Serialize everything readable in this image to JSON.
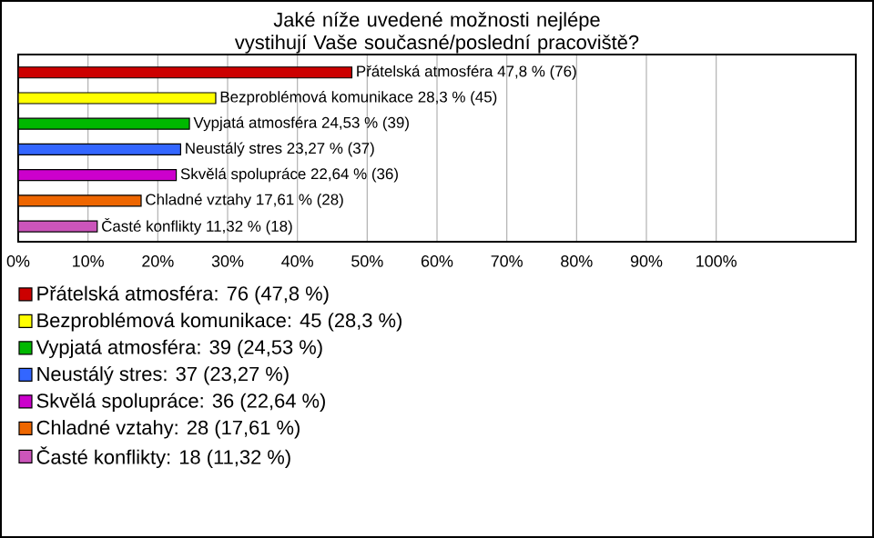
{
  "chart_data": {
    "type": "bar",
    "orientation": "horizontal",
    "title": "Jaké níže uvedené možnosti nejlépe vystihují Vaše současné/poslední pracoviště?",
    "categories": [
      null,
      null,
      null,
      null,
      null,
      null,
      null
    ],
    "series": [
      {
        "name": "Přátelská atmosféra: 76 (47,8 %)",
        "color": "#cc0000",
        "values": [
          47.8,
          null,
          null,
          null,
          null,
          null,
          null
        ],
        "value_labels": [
          "Přátelská atmosféra 47,8 % (76)",
          null,
          null,
          null,
          null,
          null,
          null
        ]
      },
      {
        "name": "Bezproblémová komunikace: 45 (28,3 %)",
        "color": "#ffff00",
        "values": [
          null,
          28.3,
          null,
          null,
          null,
          null,
          null
        ],
        "value_labels": [
          null,
          "Bezproblémová komunikace 28,3 % (45)",
          null,
          null,
          null,
          null,
          null
        ]
      },
      {
        "name": "Vypjatá atmosféra: 39 (24,53 %)",
        "color": "#00b800",
        "values": [
          null,
          null,
          24.53,
          null,
          null,
          null,
          null
        ],
        "value_labels": [
          null,
          null,
          "Vypjatá atmosféra 24,53 % (39)",
          null,
          null,
          null,
          null
        ]
      },
      {
        "name": "Neustálý stres: 37 (23,27 %)",
        "color": "#3366ff",
        "values": [
          null,
          null,
          null,
          23.27,
          null,
          null,
          null
        ],
        "value_labels": [
          null,
          null,
          null,
          "Neustálý stres 23,27 % (37)",
          null,
          null,
          null
        ]
      },
      {
        "name": "Skvělá spolupráce: 36 (22,64 %)",
        "color": "#cc00cc",
        "values": [
          null,
          null,
          null,
          null,
          22.64,
          null,
          null
        ],
        "value_labels": [
          null,
          null,
          null,
          null,
          "Skvělá spolupráce 22,64 % (36)",
          null,
          null
        ]
      },
      {
        "name": "Chladné vztahy: 28 (17,61 %)",
        "color": "#ee6600",
        "values": [
          null,
          null,
          null,
          null,
          null,
          17.61,
          null
        ],
        "value_labels": [
          null,
          null,
          null,
          null,
          null,
          "Chladné vztahy 17,61 % (28)",
          null
        ]
      },
      {
        "name": "Časté konflikty: 18 (11,32 %)",
        "color": "#cc55bb",
        "values": [
          null,
          null,
          null,
          null,
          null,
          null,
          11.32
        ],
        "value_labels": [
          null,
          null,
          null,
          null,
          null,
          null,
          "Časté konflikty 11,32 % (18)"
        ]
      }
    ],
    "xlim": [
      0,
      120
    ],
    "xticks": [
      {
        "value": 0,
        "label": "0%"
      },
      {
        "value": 10,
        "label": "10%"
      },
      {
        "value": 20,
        "label": "20%"
      },
      {
        "value": 30,
        "label": "30%"
      },
      {
        "value": 40,
        "label": "40%"
      },
      {
        "value": 50,
        "label": "50%"
      },
      {
        "value": 60,
        "label": "60%"
      },
      {
        "value": 70,
        "label": "70%"
      },
      {
        "value": 80,
        "label": "80%"
      },
      {
        "value": 90,
        "label": "90%"
      },
      {
        "value": 100,
        "label": "100%"
      }
    ],
    "grid": "x",
    "legend": "bottom"
  }
}
